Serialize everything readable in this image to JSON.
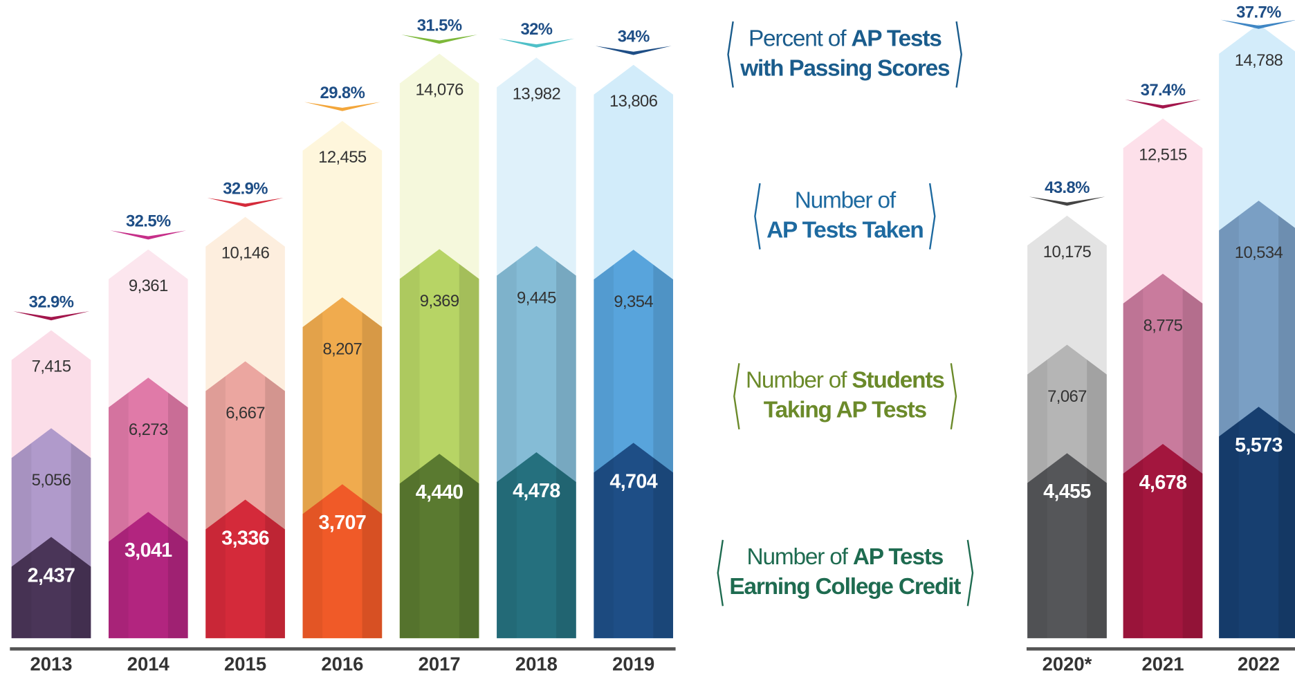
{
  "chart_data": {
    "type": "bar",
    "categories": [
      "2013",
      "2014",
      "2015",
      "2016",
      "2017",
      "2018",
      "2019",
      "2020*",
      "2021",
      "2022"
    ],
    "series": [
      {
        "name": [
          [
            {
              "text": "Percent of "
            },
            {
              "text": "AP Tests",
              "bold": true
            }
          ],
          [
            {
              "text": "with Passing Scores",
              "bold": true
            }
          ]
        ],
        "color": "#1a5c8c",
        "marker": "chevron",
        "values": [
          32.9,
          32.5,
          32.9,
          29.8,
          31.5,
          32,
          34,
          43.8,
          37.4,
          37.7
        ],
        "value_labels": [
          "32.9%",
          "32.5%",
          "32.9%",
          "29.8%",
          "31.5%",
          "32%",
          "34%",
          "43.8%",
          "37.4%",
          "37.7%"
        ],
        "colors": [
          "#a3164c",
          "#c62f89",
          "#d42a3a",
          "#f3a63a",
          "#7db83a",
          "#4fc0c8",
          "#1e4e86",
          "#444444",
          "#a3164c",
          "#3f86c4"
        ]
      },
      {
        "name": [
          [
            {
              "text": "Number of"
            }
          ],
          [
            {
              "text": "AP Tests Taken",
              "bold": true
            }
          ]
        ],
        "color": "#1e6aa0",
        "values": [
          7415,
          9361,
          10146,
          12455,
          14076,
          13982,
          13806,
          10175,
          12515,
          14788
        ],
        "value_labels": [
          "7,415",
          "9,361",
          "10,146",
          "12,455",
          "14,076",
          "13,982",
          "13,806",
          "10,175",
          "12,515",
          "14,788"
        ],
        "colors": [
          "#fbdde8",
          "#fce6ee",
          "#fdeede",
          "#fef6dc",
          "#f5f8dc",
          "#dff1fa",
          "#d2ecfa",
          "#e3e3e3",
          "#fde0ea",
          "#d3ecfa"
        ]
      },
      {
        "name": [
          [
            {
              "text": "Number of "
            },
            {
              "text": "Students",
              "bold": true
            }
          ],
          [
            {
              "text": "Taking AP Tests",
              "bold": true
            }
          ]
        ],
        "color": "#6b8a2a",
        "values": [
          5056,
          6273,
          6667,
          8207,
          9369,
          9445,
          9354,
          7067,
          8775,
          10534
        ],
        "value_labels": [
          "5,056",
          "6,273",
          "6,667",
          "8,207",
          "9,369",
          "9,445",
          "9,354",
          "7,067",
          "8,775",
          "10,534"
        ],
        "colors": [
          "#b09acb",
          "#e07aa8",
          "#eba6a0",
          "#f0ab4e",
          "#b7d465",
          "#85bcd6",
          "#58a4dc",
          "#b5b5b5",
          "#c97b9d",
          "#7a9fc4"
        ]
      },
      {
        "name": [
          [
            {
              "text": "Number of "
            },
            {
              "text": "AP Tests",
              "bold": true
            }
          ],
          [
            {
              "text": "Earning College Credit",
              "bold": true
            }
          ]
        ],
        "color": "#1e6b50",
        "values": [
          2437,
          3041,
          3336,
          3707,
          4440,
          4478,
          4704,
          4455,
          4678,
          5573
        ],
        "value_labels": [
          "2,437",
          "3,041",
          "3,336",
          "3,707",
          "4,440",
          "4,478",
          "4,704",
          "4,455",
          "4,678",
          "5,573"
        ],
        "colors": [
          "#4a3558",
          "#b2257f",
          "#d42a3a",
          "#f05a28",
          "#5a7a30",
          "#25707e",
          "#1e4e86",
          "#555659",
          "#a3163e",
          "#173f70"
        ]
      }
    ]
  }
}
